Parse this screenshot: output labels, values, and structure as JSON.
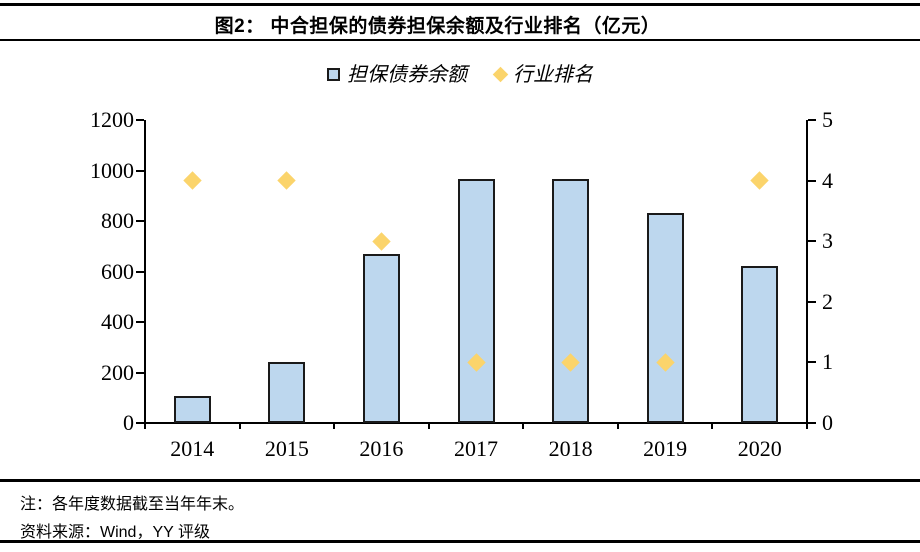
{
  "figure": {
    "title": "图2：  中合担保的债券担保余额及行业排名（亿元）",
    "note": "注：各年度数据截至当年年末。",
    "source": "资料来源：Wind，YY 评级"
  },
  "legend": [
    {
      "label": "担保债券余额",
      "marker": "square",
      "fill": "#BDD7EE",
      "stroke": "#1A1A1A"
    },
    {
      "label": "行业排名",
      "marker": "diamond",
      "fill": "#FBD46B"
    }
  ],
  "chart_data": {
    "type": "bar",
    "title": "中合担保的债券担保余额及行业排名（亿元）",
    "categories": [
      "2014",
      "2015",
      "2016",
      "2017",
      "2018",
      "2019",
      "2020"
    ],
    "series": [
      {
        "name": "担保债券余额",
        "type": "bar",
        "axis": "left",
        "values": [
          105,
          240,
          670,
          965,
          965,
          830,
          620
        ],
        "fill": "#BDD7EE",
        "stroke": "#1A1A1A"
      },
      {
        "name": "行业排名",
        "type": "scatter",
        "marker": "diamond",
        "axis": "right",
        "values": [
          4,
          4,
          3,
          1,
          1,
          1,
          4
        ],
        "fill": "#FBD46B"
      }
    ],
    "left_axis": {
      "min": 0,
      "max": 1200,
      "step": 200,
      "ticks": [
        "0",
        "200",
        "400",
        "600",
        "800",
        "1000",
        "1200"
      ]
    },
    "right_axis": {
      "min": 0,
      "max": 5,
      "step": 1,
      "ticks": [
        "0",
        "1",
        "2",
        "3",
        "4",
        "5"
      ]
    },
    "grid": false,
    "legend_position": "top-center",
    "axis_color": "#000000"
  }
}
